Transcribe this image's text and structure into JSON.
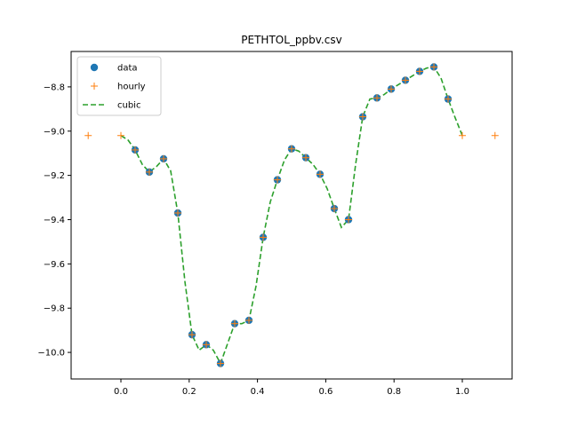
{
  "chart_data": {
    "type": "scatter",
    "title": "PETHTOL_ppbv.csv",
    "xlabel": "",
    "ylabel": "",
    "xlim": [
      -0.1458,
      1.1458
    ],
    "ylim": [
      -10.12,
      -8.64
    ],
    "x_ticks": [
      {
        "value": 0.0,
        "label": "0.0"
      },
      {
        "value": 0.2,
        "label": "0.2"
      },
      {
        "value": 0.4,
        "label": "0.4"
      },
      {
        "value": 0.6,
        "label": "0.6"
      },
      {
        "value": 0.8,
        "label": "0.8"
      },
      {
        "value": 1.0,
        "label": "1.0"
      }
    ],
    "y_ticks": [
      {
        "value": -8.8,
        "label": "−8.8"
      },
      {
        "value": -9.0,
        "label": "−9.0"
      },
      {
        "value": -9.2,
        "label": "−9.2"
      },
      {
        "value": -9.4,
        "label": "−9.4"
      },
      {
        "value": -9.6,
        "label": "−9.6"
      },
      {
        "value": -9.8,
        "label": "−9.8"
      },
      {
        "value": -10.0,
        "label": "−10.0"
      }
    ],
    "grid": false,
    "legend": {
      "position": "top-left",
      "entries": [
        "data",
        "hourly",
        "cubic"
      ]
    },
    "series": [
      {
        "name": "data",
        "style": "markers",
        "marker": "circle",
        "color": "#1f77b4",
        "x": [
          0.0417,
          0.0833,
          0.125,
          0.1667,
          0.2083,
          0.25,
          0.2917,
          0.3333,
          0.375,
          0.4167,
          0.4583,
          0.5,
          0.5417,
          0.5833,
          0.625,
          0.6667,
          0.7083,
          0.75,
          0.7917,
          0.8333,
          0.875,
          0.9167,
          0.9583
        ],
        "y": [
          -9.085,
          -9.185,
          -9.125,
          -9.37,
          -9.92,
          -9.965,
          -10.05,
          -9.87,
          -9.855,
          -9.48,
          -9.22,
          -9.08,
          -9.12,
          -9.195,
          -9.35,
          -9.4,
          -8.935,
          -8.85,
          -8.81,
          -8.77,
          -8.73,
          -8.71,
          -8.855
        ]
      },
      {
        "name": "hourly",
        "style": "markers",
        "marker": "plus",
        "color": "#ff7f0e",
        "x": [
          -0.0958,
          0.0,
          0.0417,
          0.0833,
          0.125,
          0.1667,
          0.2083,
          0.25,
          0.2917,
          0.3333,
          0.375,
          0.4167,
          0.4583,
          0.5,
          0.5417,
          0.5833,
          0.625,
          0.6667,
          0.7083,
          0.75,
          0.7917,
          0.8333,
          0.875,
          0.9167,
          0.9583,
          1.0,
          1.0958
        ],
        "y": [
          -9.02,
          -9.02,
          -9.085,
          -9.185,
          -9.125,
          -9.37,
          -9.92,
          -9.965,
          -10.05,
          -9.87,
          -9.855,
          -9.48,
          -9.22,
          -9.08,
          -9.12,
          -9.195,
          -9.35,
          -9.4,
          -8.935,
          -8.85,
          -8.81,
          -8.77,
          -8.73,
          -8.71,
          -8.855,
          -9.02,
          -9.02
        ]
      },
      {
        "name": "cubic",
        "style": "dashed-line",
        "color": "#2ca02c",
        "x": [
          0.0,
          0.0208,
          0.0417,
          0.0625,
          0.0833,
          0.1042,
          0.125,
          0.1458,
          0.1667,
          0.1875,
          0.2083,
          0.2292,
          0.25,
          0.2708,
          0.2917,
          0.3125,
          0.3333,
          0.3542,
          0.375,
          0.3958,
          0.4167,
          0.4375,
          0.4583,
          0.4792,
          0.5,
          0.5208,
          0.5417,
          0.5625,
          0.5833,
          0.6042,
          0.625,
          0.6458,
          0.6667,
          0.6875,
          0.7083,
          0.7292,
          0.75,
          0.7708,
          0.7917,
          0.8125,
          0.8333,
          0.8542,
          0.875,
          0.8958,
          0.9167,
          0.9375,
          0.9583,
          0.9792,
          1.0
        ],
        "y": [
          -9.02,
          -9.04,
          -9.085,
          -9.15,
          -9.185,
          -9.16,
          -9.125,
          -9.18,
          -9.37,
          -9.68,
          -9.92,
          -9.99,
          -9.965,
          -9.99,
          -10.05,
          -9.96,
          -9.87,
          -9.87,
          -9.855,
          -9.7,
          -9.48,
          -9.32,
          -9.22,
          -9.13,
          -9.08,
          -9.09,
          -9.12,
          -9.15,
          -9.195,
          -9.26,
          -9.35,
          -9.435,
          -9.4,
          -9.15,
          -8.935,
          -8.855,
          -8.85,
          -8.835,
          -8.81,
          -8.79,
          -8.77,
          -8.75,
          -8.73,
          -8.715,
          -8.71,
          -8.76,
          -8.855,
          -8.94,
          -9.02
        ]
      }
    ]
  }
}
